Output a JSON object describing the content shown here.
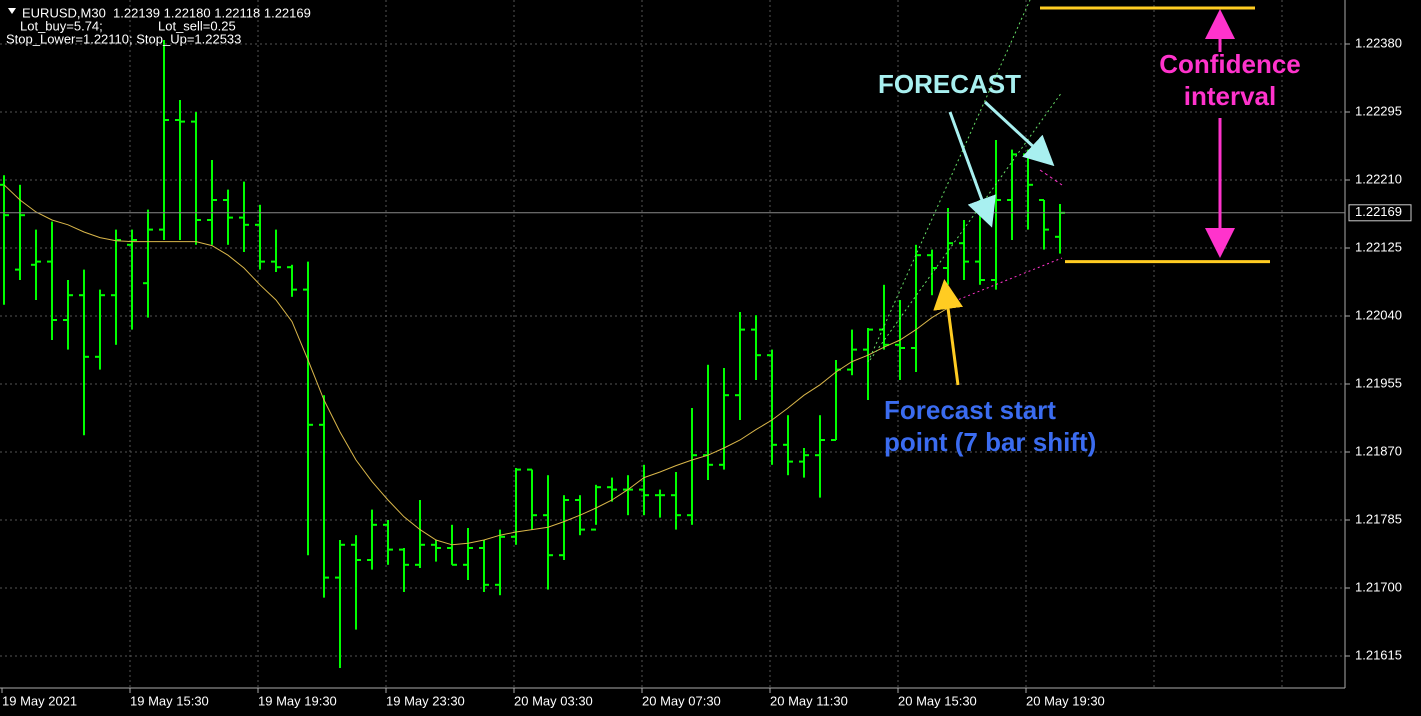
{
  "chart_data": {
    "type": "ohlc",
    "header": {
      "symbol_quote": "EURUSD,M30  1.22139 1.22180 1.22118 1.22169",
      "lot_buy": "Lot_buy=5.74;",
      "lot_sell": "Lot_sell=0.25",
      "stops": "Stop_Lower=1.22110; Stop_Up=1.22533"
    },
    "categories": [
      "19 May 2021",
      null,
      null,
      null,
      null,
      null,
      null,
      null,
      "19 May 15:30",
      null,
      null,
      null,
      null,
      null,
      null,
      null,
      "19 May 19:30",
      null,
      null,
      null,
      null,
      null,
      null,
      null,
      "19 May 23:30",
      null,
      null,
      null,
      null,
      null,
      null,
      null,
      "20 May 03:30",
      null,
      null,
      null,
      null,
      null,
      null,
      null,
      "20 May 07:30",
      null,
      null,
      null,
      null,
      null,
      null,
      null,
      "20 May 11:30",
      null,
      null,
      null,
      null,
      null,
      null,
      null,
      "20 May 15:30",
      null,
      null,
      null,
      null,
      null,
      null,
      null,
      "20 May 19:30",
      null,
      null
    ],
    "open": [
      1.22204,
      1.22098,
      1.22104,
      1.22108,
      1.22035,
      1.22066,
      1.21989,
      1.22066,
      1.22129,
      1.22081,
      1.22148,
      1.22285,
      1.22283,
      1.2216,
      1.22185,
      1.22163,
      1.22154,
      1.22108,
      1.22101,
      1.22073,
      1.21904,
      1.21713,
      1.21754,
      1.21735,
      1.21779,
      1.21748,
      1.21729,
      1.21754,
      1.2175,
      1.21729,
      1.2175,
      1.21704,
      1.21764,
      1.21848,
      1.21791,
      1.21741,
      1.2181,
      1.21773,
      1.21826,
      1.21823,
      1.21823,
      1.21816,
      1.21816,
      1.21791,
      1.21866,
      1.21854,
      1.21941,
      1.22023,
      1.21991,
      1.21879,
      1.21858,
      1.21866,
      1.21885,
      1.21973,
      1.21998,
      1.22023,
      1.22004,
      1.22,
      1.22116,
      1.221,
      1.22131,
      1.22108,
      1.22085,
      1.22185,
      1.22242,
      1.22185,
      1.22139
    ],
    "high": [
      1.22216,
      1.22204,
      1.22148,
      1.22158,
      1.22085,
      1.22098,
      1.22073,
      1.22148,
      1.22148,
      1.22173,
      1.22385,
      1.2231,
      1.22295,
      1.22235,
      1.22198,
      1.22208,
      1.22179,
      1.22148,
      1.22104,
      1.22108,
      1.21941,
      1.2176,
      1.21766,
      1.21798,
      1.21785,
      1.2175,
      1.2181,
      1.2176,
      1.21779,
      1.21775,
      1.2176,
      1.21773,
      1.2185,
      1.21848,
      1.21841,
      1.21816,
      1.21816,
      1.21829,
      1.21838,
      1.21841,
      1.21854,
      1.21823,
      1.21845,
      1.21925,
      1.21979,
      1.21975,
      1.22045,
      1.22041,
      1.21998,
      1.21916,
      1.21875,
      1.21916,
      1.21985,
      1.22023,
      1.22025,
      1.22079,
      1.2206,
      1.22129,
      1.22123,
      1.22175,
      1.2216,
      1.22185,
      1.2226,
      1.22248,
      1.22248,
      1.22185,
      1.2218
    ],
    "low": [
      1.22054,
      1.22085,
      1.2206,
      1.2201,
      1.21998,
      1.21891,
      1.21973,
      1.22004,
      1.22023,
      1.22038,
      1.22135,
      1.22135,
      1.22129,
      1.22129,
      1.22129,
      1.2212,
      1.22098,
      1.22095,
      1.22064,
      1.21741,
      1.21688,
      1.216,
      1.21648,
      1.21723,
      1.21729,
      1.21695,
      1.21725,
      1.21733,
      1.21729,
      1.2171,
      1.21695,
      1.21691,
      1.21754,
      1.21773,
      1.21698,
      1.21735,
      1.21766,
      1.21779,
      1.21808,
      1.21791,
      1.21791,
      1.21788,
      1.21773,
      1.21779,
      1.21835,
      1.21848,
      1.2191,
      1.2196,
      1.21854,
      1.21841,
      1.21838,
      1.21813,
      1.21885,
      1.21966,
      1.21935,
      1.21998,
      1.2196,
      1.2197,
      1.22066,
      1.22079,
      1.22085,
      1.22079,
      1.22073,
      1.22135,
      1.22148,
      1.22123,
      1.22118
    ],
    "close": [
      1.22166,
      1.22166,
      1.22108,
      1.22035,
      1.22066,
      1.21989,
      1.22066,
      1.22135,
      1.22135,
      1.22148,
      1.22285,
      1.22283,
      1.2216,
      1.22185,
      1.22163,
      1.22154,
      1.22108,
      1.22101,
      1.22073,
      1.21904,
      1.21713,
      1.21754,
      1.21735,
      1.21779,
      1.21748,
      1.21729,
      1.21754,
      1.2175,
      1.21729,
      1.2175,
      1.21704,
      1.21764,
      1.21848,
      1.21791,
      1.21741,
      1.2181,
      1.21773,
      1.21826,
      1.21823,
      1.21823,
      1.21816,
      1.21816,
      1.21791,
      1.21866,
      1.21854,
      1.21941,
      1.22023,
      1.21991,
      1.21879,
      1.21858,
      1.21866,
      1.21885,
      1.21973,
      1.21998,
      1.22023,
      1.22004,
      1.22,
      1.22116,
      1.221,
      1.22131,
      1.22108,
      1.22085,
      1.22185,
      1.22242,
      1.22204,
      1.22148,
      1.22169
    ],
    "color": "#00ff00",
    "ma_values": [
      1.22204,
      1.22185,
      1.2217,
      1.2216,
      1.22154,
      1.22145,
      1.22138,
      1.22134,
      1.22133,
      1.22133,
      1.22133,
      1.22133,
      1.22133,
      1.22128,
      1.22116,
      1.221,
      1.22079,
      1.2206,
      1.22033,
      1.21985,
      1.21935,
      1.21895,
      1.2186,
      1.21833,
      1.2181,
      1.21789,
      1.21773,
      1.2176,
      1.21754,
      1.21756,
      1.2176,
      1.21766,
      1.2177,
      1.21773,
      1.21776,
      1.21783,
      1.21791,
      1.218,
      1.2181,
      1.21823,
      1.21838,
      1.21845,
      1.21853,
      1.2186,
      1.21866,
      1.21875,
      1.21885,
      1.21898,
      1.2191,
      1.21925,
      1.21941,
      1.21954,
      1.2197,
      1.21983,
      1.21991,
      1.22001,
      1.2201,
      1.22023,
      1.22038,
      1.2205,
      null,
      null,
      null,
      null,
      null,
      null,
      null
    ],
    "ma_color": "#d9b64a",
    "current_price": 1.22169,
    "confidence_interval": [
      1.22108,
      1.22425
    ],
    "ylim": [
      1.21575,
      1.22435
    ],
    "yticks": [
      {
        "value": 1.2238,
        "label": "1.22380"
      },
      {
        "value": 1.22295,
        "label": "1.22295"
      },
      {
        "value": 1.2221,
        "label": "1.22210"
      },
      {
        "value": 1.22125,
        "label": "1.22125"
      },
      {
        "value": 1.2204,
        "label": "1.22040"
      },
      {
        "value": 1.21955,
        "label": "1.21955"
      },
      {
        "value": 1.2187,
        "label": "1.21870"
      },
      {
        "value": 1.21785,
        "label": "1.21785"
      },
      {
        "value": 1.217,
        "label": "1.21700"
      },
      {
        "value": 1.21615,
        "label": "1.21615"
      }
    ],
    "grid": true,
    "annotations": {
      "forecast": "FORECAST",
      "confidence": "Confidence interval",
      "start_point": "Forecast start point (7 bar shift)"
    }
  }
}
